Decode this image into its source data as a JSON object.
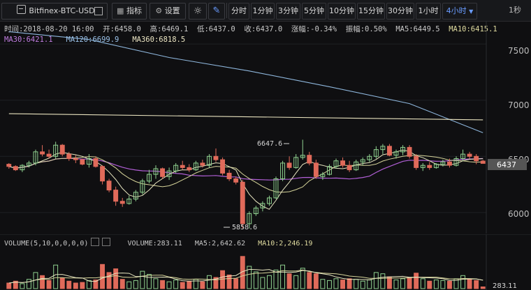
{
  "toolbar": {
    "symbol": "Bitfinex-BTC-USD",
    "indicators": "指标",
    "settings": "设置",
    "intervals": [
      "分时",
      "1分钟",
      "3分钟",
      "5分钟",
      "10分钟",
      "15分钟",
      "30分钟",
      "1小时",
      "4小时"
    ],
    "active_interval": "4小时",
    "countdown": "1秒"
  },
  "ohlc": {
    "time": "时间:2018-08-20 16:00",
    "open": "开:6458.0",
    "high": "高:6469.1",
    "low": "低:6437.0",
    "close": "收:6437.0",
    "change": "涨幅:-0.34%",
    "amplitude": "振幅:0.50%",
    "ma5": "MA5:6449.5",
    "ma10": "MA10:6415.1"
  },
  "ma_row2": {
    "ma30": "MA30:6421.1",
    "ma120": "MA120:6699.9",
    "ma360": "MA360:6818.5"
  },
  "price_axis": {
    "ticks": [
      "7500",
      "7000",
      "6500",
      "6000"
    ],
    "current_price": "6437"
  },
  "annotations": {
    "high_label": "6647.6",
    "low_label": "5858.6"
  },
  "volume": {
    "indicator": "VOLUME(5,10,0,0,0,0)",
    "value": "VOLUME:283.11",
    "ma5": "MA5:2,642.62",
    "ma10": "MA10:2,246.19",
    "current": "283.11"
  },
  "colors": {
    "up": "#8fd18f",
    "down": "#e06a5a",
    "ma5": "#e8e6c0",
    "ma10": "#d6d49a",
    "ma30": "#b15fd6",
    "ma120": "#8eb6dc",
    "ma360": "#e9e3bf"
  },
  "chart_data": {
    "type": "candlestick",
    "ylim": [
      5850,
      7650
    ],
    "candles": [
      [
        6430,
        6440,
        6390,
        6410
      ],
      [
        6410,
        6420,
        6370,
        6380
      ],
      [
        6380,
        6430,
        6360,
        6420
      ],
      [
        6420,
        6460,
        6400,
        6440
      ],
      [
        6440,
        6560,
        6420,
        6540
      ],
      [
        6540,
        6600,
        6500,
        6520
      ],
      [
        6520,
        6560,
        6480,
        6500
      ],
      [
        6500,
        6630,
        6480,
        6600
      ],
      [
        6600,
        6610,
        6500,
        6520
      ],
      [
        6520,
        6540,
        6460,
        6480
      ],
      [
        6480,
        6510,
        6440,
        6470
      ],
      [
        6470,
        6480,
        6420,
        6430
      ],
      [
        6430,
        6520,
        6400,
        6480
      ],
      [
        6480,
        6500,
        6400,
        6410
      ],
      [
        6410,
        6420,
        6250,
        6280
      ],
      [
        6280,
        6300,
        6180,
        6200
      ],
      [
        6200,
        6230,
        6060,
        6100
      ],
      [
        6100,
        6130,
        6050,
        6080
      ],
      [
        6080,
        6150,
        6070,
        6120
      ],
      [
        6120,
        6200,
        6100,
        6180
      ],
      [
        6180,
        6300,
        6160,
        6280
      ],
      [
        6280,
        6380,
        6260,
        6340
      ],
      [
        6340,
        6420,
        6300,
        6390
      ],
      [
        6390,
        6400,
        6300,
        6320
      ],
      [
        6320,
        6400,
        6290,
        6370
      ],
      [
        6370,
        6440,
        6350,
        6420
      ],
      [
        6420,
        6460,
        6380,
        6400
      ],
      [
        6400,
        6430,
        6360,
        6380
      ],
      [
        6380,
        6460,
        6370,
        6440
      ],
      [
        6440,
        6470,
        6400,
        6420
      ],
      [
        6420,
        6520,
        6400,
        6500
      ],
      [
        6500,
        6570,
        6450,
        6470
      ],
      [
        6470,
        6490,
        6330,
        6350
      ],
      [
        6350,
        6380,
        6280,
        6300
      ],
      [
        6300,
        6320,
        6250,
        6270
      ],
      [
        6270,
        6290,
        5860,
        5900
      ],
      [
        5900,
        6010,
        5858,
        5990
      ],
      [
        5990,
        6060,
        5970,
        6040
      ],
      [
        6040,
        6100,
        6010,
        6080
      ],
      [
        6080,
        6150,
        6060,
        6130
      ],
      [
        6130,
        6320,
        6120,
        6300
      ],
      [
        6300,
        6460,
        6280,
        6440
      ],
      [
        6440,
        6500,
        6380,
        6400
      ],
      [
        6400,
        6520,
        6390,
        6490
      ],
      [
        6490,
        6648,
        6470,
        6510
      ],
      [
        6510,
        6540,
        6420,
        6440
      ],
      [
        6440,
        6470,
        6300,
        6320
      ],
      [
        6320,
        6360,
        6290,
        6340
      ],
      [
        6340,
        6430,
        6330,
        6410
      ],
      [
        6410,
        6480,
        6390,
        6460
      ],
      [
        6460,
        6490,
        6400,
        6420
      ],
      [
        6420,
        6460,
        6360,
        6380
      ],
      [
        6380,
        6470,
        6370,
        6450
      ],
      [
        6450,
        6490,
        6420,
        6470
      ],
      [
        6470,
        6520,
        6450,
        6500
      ],
      [
        6500,
        6590,
        6480,
        6560
      ],
      [
        6560,
        6610,
        6520,
        6590
      ],
      [
        6590,
        6610,
        6500,
        6510
      ],
      [
        6510,
        6560,
        6480,
        6540
      ],
      [
        6540,
        6600,
        6510,
        6580
      ],
      [
        6580,
        6600,
        6480,
        6500
      ],
      [
        6500,
        6520,
        6380,
        6400
      ],
      [
        6400,
        6440,
        6370,
        6420
      ],
      [
        6420,
        6450,
        6380,
        6400
      ],
      [
        6400,
        6440,
        6390,
        6430
      ],
      [
        6430,
        6470,
        6410,
        6450
      ],
      [
        6450,
        6480,
        6400,
        6420
      ],
      [
        6420,
        6500,
        6410,
        6480
      ],
      [
        6480,
        6560,
        6460,
        6520
      ],
      [
        6520,
        6540,
        6480,
        6500
      ],
      [
        6500,
        6520,
        6430,
        6460
      ],
      [
        6458,
        6469,
        6437,
        6437
      ]
    ],
    "volumes": [
      900,
      1200,
      800,
      1500,
      2600,
      2100,
      1300,
      3800,
      1700,
      1200,
      900,
      1000,
      1300,
      1400,
      3900,
      2600,
      3200,
      1500,
      1100,
      1300,
      2800,
      2300,
      1600,
      1300,
      1100,
      1400,
      1000,
      1200,
      1500,
      1100,
      2100,
      1800,
      2900,
      2200,
      1600,
      5200,
      3600,
      2700,
      1800,
      2100,
      3000,
      3800,
      2400,
      2100,
      3300,
      2600,
      2400,
      1500,
      1300,
      1600,
      1400,
      1600,
      1500,
      1200,
      1400,
      2600,
      2400,
      1900,
      1400,
      1600,
      1800,
      2500,
      1600,
      1200,
      1400,
      1300,
      1200,
      1600,
      2100,
      1500,
      1300,
      283
    ],
    "ma120_line": [
      [
        0,
        7610
      ],
      [
        12,
        7540
      ],
      [
        24,
        7380
      ],
      [
        36,
        7260
      ],
      [
        48,
        7120
      ],
      [
        60,
        6970
      ],
      [
        71,
        6710
      ]
    ],
    "ma360_line": [
      [
        0,
        6880
      ],
      [
        71,
        6825
      ]
    ]
  }
}
